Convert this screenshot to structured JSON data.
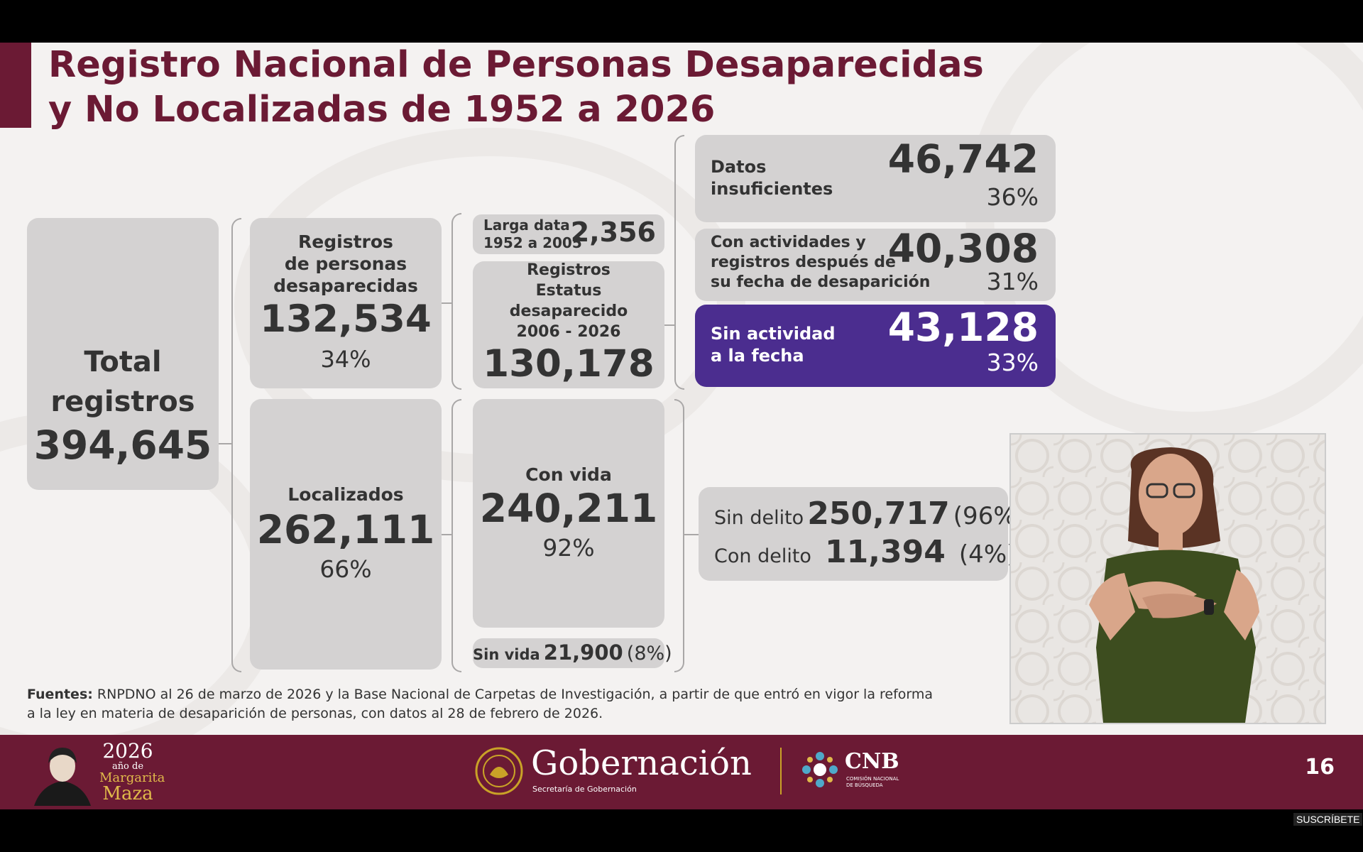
{
  "title": {
    "line1": "Registro Nacional de Personas Desaparecidas",
    "line2": "y No Localizadas de 1952 a 2026"
  },
  "total": {
    "label1": "Total",
    "label2": "registros",
    "value": "394,645"
  },
  "desaparecidas": {
    "label1": "Registros",
    "label2": "de personas",
    "label3": "desaparecidas",
    "value": "132,534",
    "pct": "34%"
  },
  "localizados": {
    "label": "Localizados",
    "value": "262,111",
    "pct": "66%"
  },
  "larga_data": {
    "label1": "Larga data",
    "label2": "1952 a 2005",
    "value": "2,356"
  },
  "estatus": {
    "label1": "Registros",
    "label2": "Estatus",
    "label3": "desaparecido",
    "label4": "2006 - 2026",
    "value": "130,178"
  },
  "con_vida": {
    "label": "Con vida",
    "value": "240,211",
    "pct": "92%"
  },
  "sin_vida": {
    "label": "Sin vida",
    "value": "21,900",
    "pct": "(8%)"
  },
  "datos_insuf": {
    "label1": "Datos",
    "label2": "insuficientes",
    "value": "46,742",
    "pct": "36%"
  },
  "con_actividades": {
    "label1": "Con actividades y",
    "label2": "registros después de",
    "label3": "su fecha de desaparición",
    "value": "40,308",
    "pct": "31%"
  },
  "sin_actividad": {
    "label1": "Sin actividad",
    "label2": "a la fecha",
    "value": "43,128",
    "pct": "33%"
  },
  "delito": {
    "sin_label": "Sin delito",
    "sin_value": "250,717",
    "sin_pct": "(96%)",
    "con_label": "Con delito",
    "con_value": "11,394",
    "con_pct": "(4%)"
  },
  "sources": {
    "bold": "Fuentes:",
    "text": " RNPDNO al 26 de marzo de 2026 y la Base Nacional de Carpetas de Investigación, a partir de que entró en vigor la reforma a la ley en materia de desaparición de personas, con datos al 28 de febrero de 2026."
  },
  "footer": {
    "year": "2026",
    "ano_de": "año de",
    "margarita": "Margarita",
    "maza": "Maza",
    "gob": "Gobernación",
    "gob_sub": "Secretaría de Gobernación",
    "cnb": "CNB",
    "cnb_sub1": "COMISIÓN NACIONAL",
    "cnb_sub2": "DE BÚSQUEDA",
    "page": "16"
  },
  "overlay": {
    "subscribe": "SUSCRÍBETE"
  },
  "colors": {
    "maroon": "#6b1a34",
    "purple": "#4b2d8f",
    "card": "#d4d2d2",
    "gold": "#c9a227"
  }
}
